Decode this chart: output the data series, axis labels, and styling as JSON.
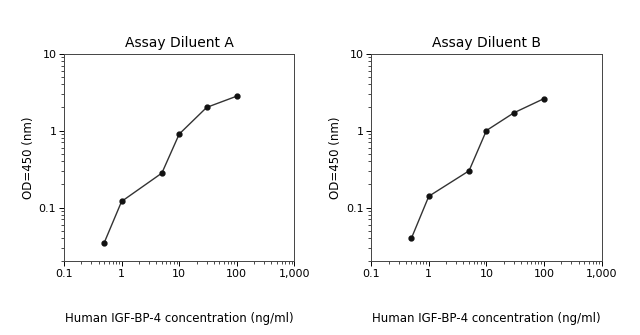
{
  "panel_A": {
    "title": "Assay Diluent A",
    "x": [
      0.5,
      1.0,
      5.0,
      10.0,
      30.0,
      100.0
    ],
    "y": [
      0.035,
      0.12,
      0.28,
      0.9,
      2.0,
      2.8
    ]
  },
  "panel_B": {
    "title": "Assay Diluent B",
    "x": [
      0.5,
      1.0,
      5.0,
      10.0,
      30.0,
      100.0
    ],
    "y": [
      0.04,
      0.14,
      0.3,
      1.0,
      1.7,
      2.6
    ]
  },
  "xlabel": "Human IGF-BP-4 concentration (ng/ml)",
  "ylabel": "OD=450 (nm)",
  "xlim": [
    0.2,
    1000
  ],
  "ylim": [
    0.02,
    10
  ],
  "xticks": [
    0.1,
    1,
    10,
    100,
    1000
  ],
  "xtick_labels": [
    "0.1",
    "1",
    "10",
    "100",
    "1,000"
  ],
  "yticks": [
    0.1,
    1,
    10
  ],
  "ytick_labels": [
    "0.1",
    "1",
    "10"
  ],
  "line_color": "#333333",
  "marker_color": "#111111",
  "marker_style": "o",
  "marker_size": 3.5,
  "line_width": 1.0,
  "bg_color": "#ffffff",
  "title_fontsize": 10,
  "label_fontsize": 8.5,
  "tick_fontsize": 8
}
